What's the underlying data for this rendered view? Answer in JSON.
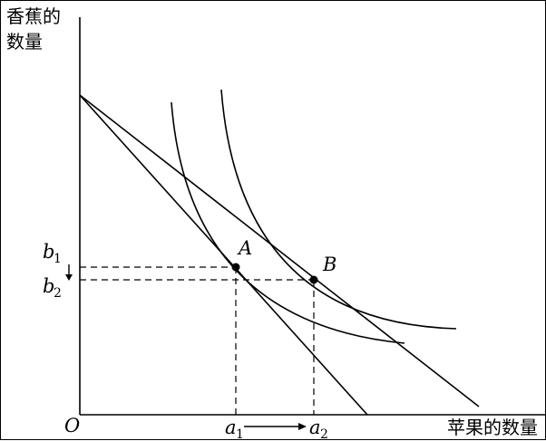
{
  "axes": {
    "y_label_line1": "香蕉的",
    "y_label_line2": "数量",
    "x_label": "苹果的数量",
    "origin": "O"
  },
  "points": {
    "A": "A",
    "B": "B"
  },
  "ticks": {
    "b": "b",
    "b1_sub": "1",
    "b2_sub": "2",
    "a": "a",
    "a1_sub": "1",
    "a2_sub": "2"
  }
}
